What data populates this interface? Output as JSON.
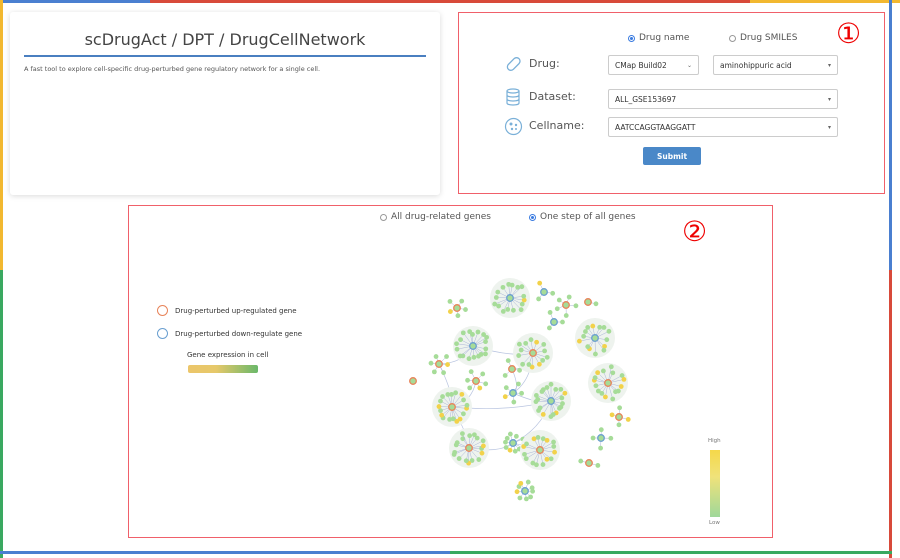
{
  "header": {
    "title": "scDrugAct / DPT / DrugCellNetwork",
    "description": "A fast tool to explore cell-specific drug-perturbed gene regulatory network for a single cell."
  },
  "form": {
    "marker": "①",
    "input_modes": [
      {
        "label": "Drug name",
        "selected": true
      },
      {
        "label": "Drug SMILES",
        "selected": false
      }
    ],
    "drug_label": "Drug:",
    "drug_source": "CMap Build02",
    "drug_value": "aminohippuric acid",
    "dataset_label": "Dataset:",
    "dataset_value": "ALL_GSE153697",
    "cellname_label": "Cellname:",
    "cellname_value": "AATCCAGGTAAGGATT",
    "submit_label": "Submit",
    "icons": [
      "pill-icon",
      "database-icon",
      "cell-icon"
    ]
  },
  "network": {
    "marker": "②",
    "view_modes": [
      {
        "label": "All drug-related genes",
        "selected": false
      },
      {
        "label": "One step of all genes",
        "selected": true
      }
    ],
    "legend": {
      "up_label": "Drug-perturbed up-regulated gene",
      "down_label": "Drug-perturbed down-regulate gene",
      "expression_label": "Gene expression in cell",
      "up_color": "#e8845a",
      "down_color": "#6a9fd0"
    },
    "colorbar": {
      "high_label": "High",
      "low_label": "Low",
      "high_color": "#f5d84a",
      "low_color": "#9fd89a"
    }
  }
}
